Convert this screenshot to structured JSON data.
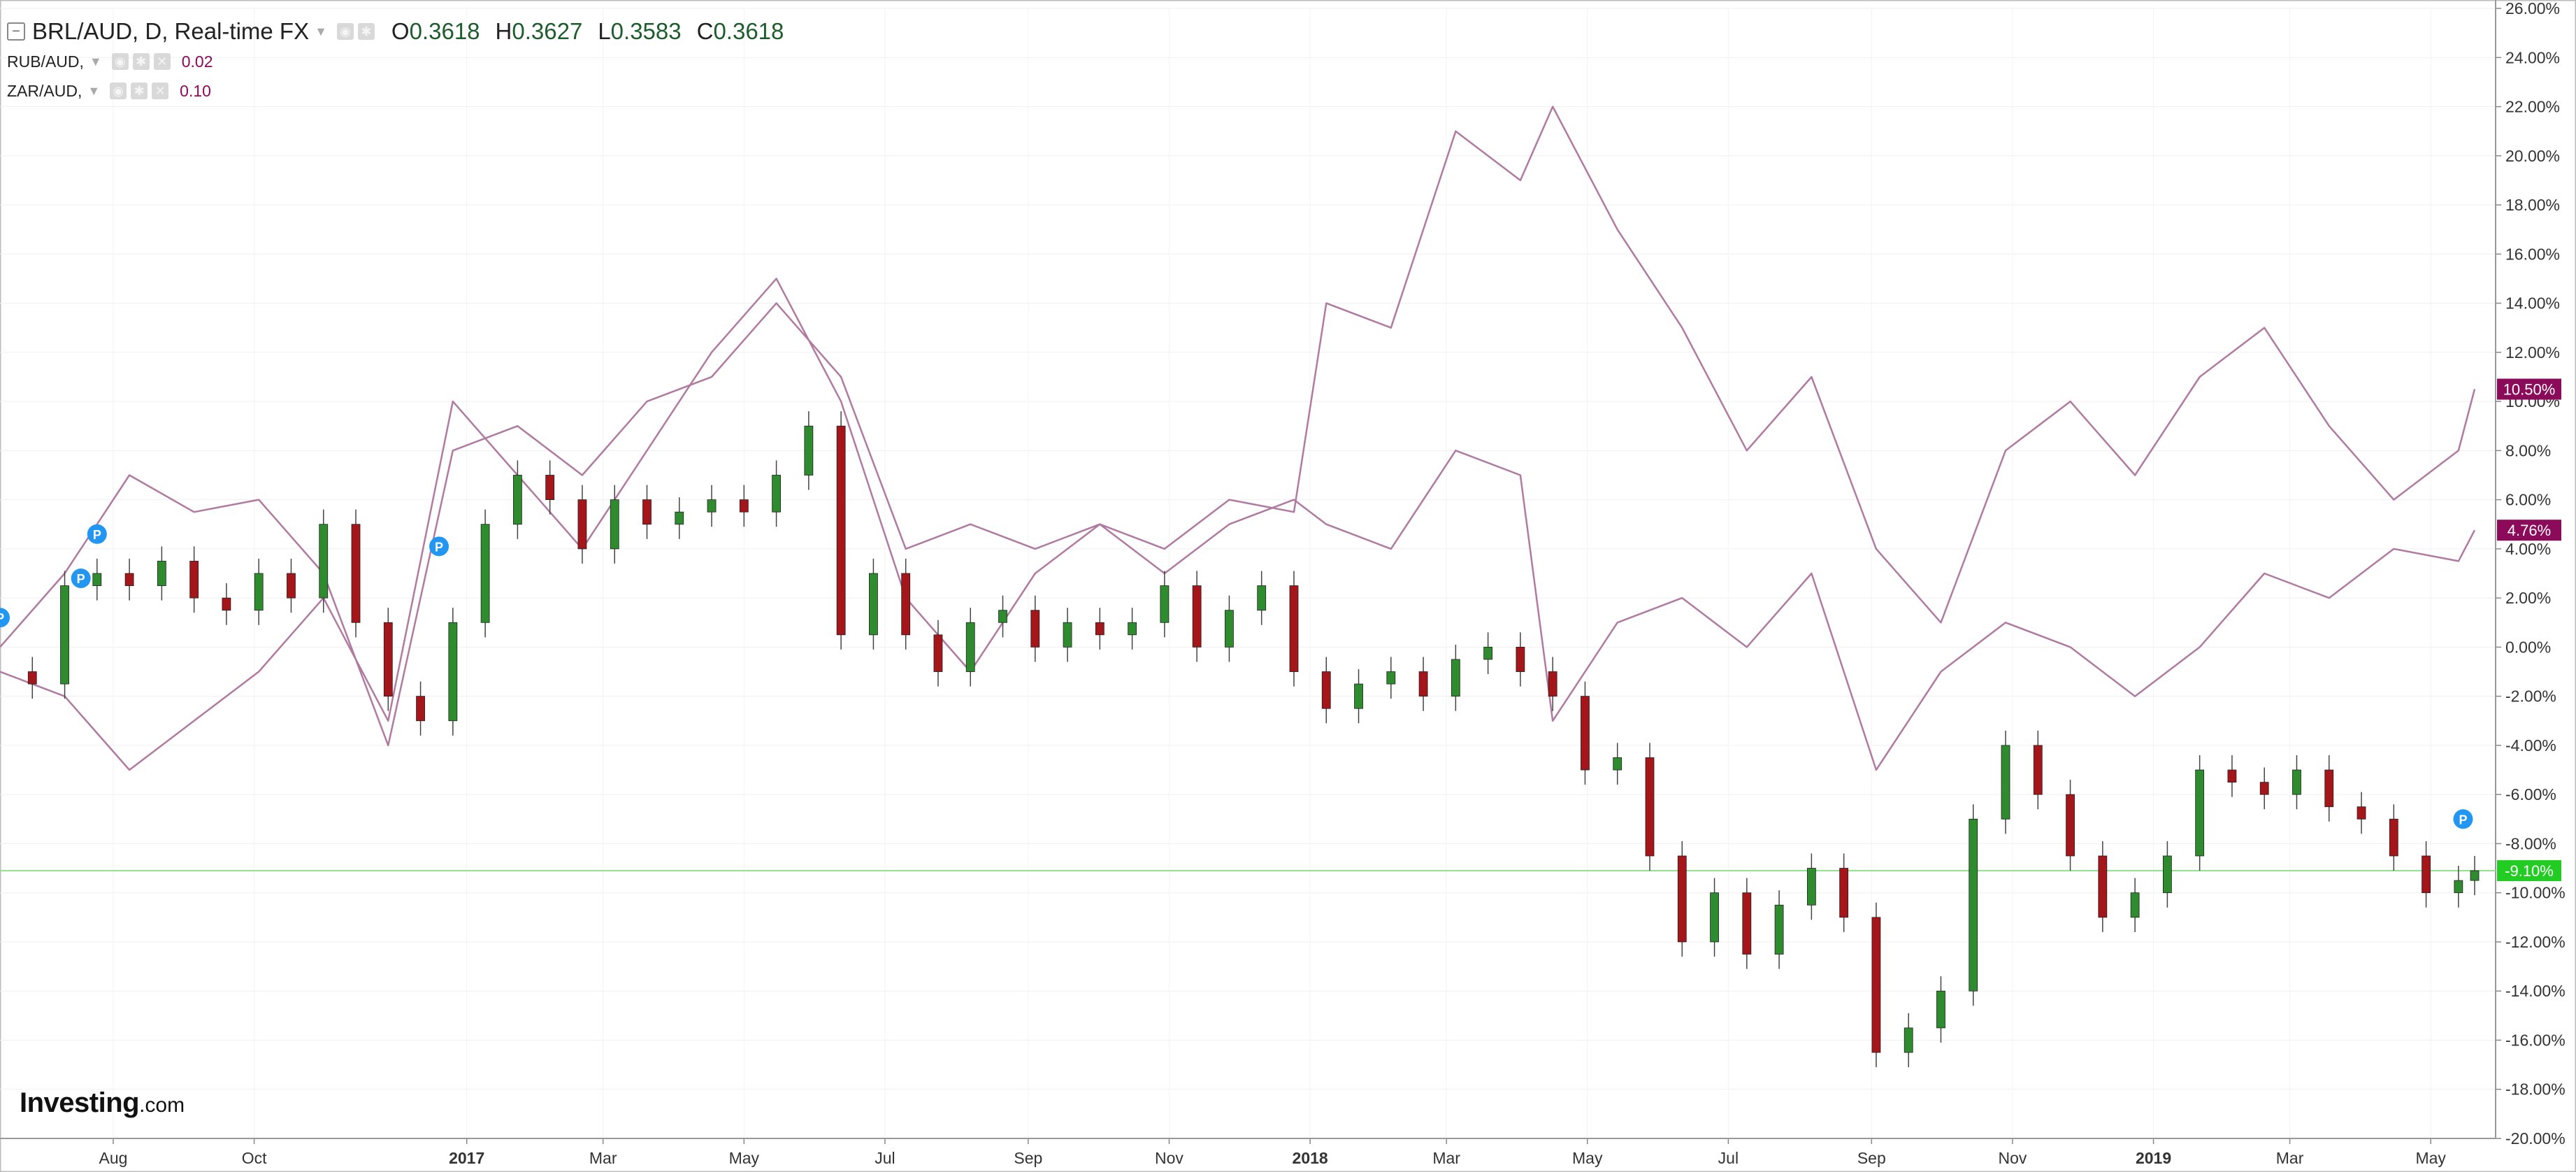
{
  "legend": {
    "main": {
      "symbol_text": "BRL/AUD, D, Real-time FX",
      "open_label": "O",
      "open": "0.3618",
      "high_label": "H",
      "high": "0.3627",
      "low_label": "L",
      "low": "0.3583",
      "close_label": "C",
      "close": "0.3618"
    },
    "compare": [
      {
        "symbol_text": "RUB/AUD,",
        "value": "0.02"
      },
      {
        "symbol_text": "ZAR/AUD,",
        "value": "0.10"
      }
    ]
  },
  "logo": {
    "brand": "Investing",
    "tld": ".com"
  },
  "colors": {
    "up_candle": "#2e8b2e",
    "down_candle": "#a4161a",
    "compare_line": "#b07aa1",
    "current_line": "#8de08d",
    "badge_compare": "#8b0a5a",
    "badge_main": "#22cc22",
    "marker": "#2196f3"
  },
  "chart_data": {
    "type": "line",
    "title": "BRL/AUD, D, Real-time FX",
    "y_unit": "percent change",
    "ylim": [
      -20,
      26
    ],
    "xlim": [
      "2016-06-13",
      "2019-05-20"
    ],
    "grid": true,
    "y_ticks": [
      "26.00%",
      "24.00%",
      "22.00%",
      "20.00%",
      "18.00%",
      "16.00%",
      "14.00%",
      "12.00%",
      "10.00%",
      "8.00%",
      "6.00%",
      "4.00%",
      "2.00%",
      "0.00%",
      "-2.00%",
      "-4.00%",
      "-6.00%",
      "-8.00%",
      "-10.00%",
      "-12.00%",
      "-14.00%",
      "-16.00%",
      "-18.00%",
      "-20.00%"
    ],
    "x_ticks": [
      {
        "label": "Aug",
        "date": "2016-08-01"
      },
      {
        "label": "Oct",
        "date": "2016-10-01"
      },
      {
        "label": "2017",
        "date": "2017-01-01"
      },
      {
        "label": "Mar",
        "date": "2017-03-01"
      },
      {
        "label": "May",
        "date": "2017-05-01"
      },
      {
        "label": "Jul",
        "date": "2017-07-01"
      },
      {
        "label": "Sep",
        "date": "2017-09-01"
      },
      {
        "label": "Nov",
        "date": "2017-11-01"
      },
      {
        "label": "2018",
        "date": "2018-01-01"
      },
      {
        "label": "Mar",
        "date": "2018-03-01"
      },
      {
        "label": "May",
        "date": "2018-05-01"
      },
      {
        "label": "Jul",
        "date": "2018-07-01"
      },
      {
        "label": "Sep",
        "date": "2018-09-01"
      },
      {
        "label": "Nov",
        "date": "2018-11-01"
      },
      {
        "label": "2019",
        "date": "2019-01-01"
      },
      {
        "label": "Mar",
        "date": "2019-03-01"
      },
      {
        "label": "May",
        "date": "2019-05-01"
      }
    ],
    "series": [
      {
        "name": "BRL/AUD",
        "style": "candlestick",
        "last_badge": "-9.10%",
        "x": [
          "2016-06-13",
          "2016-06-27",
          "2016-07-11",
          "2016-07-25",
          "2016-08-08",
          "2016-08-22",
          "2016-09-05",
          "2016-09-19",
          "2016-10-03",
          "2016-10-17",
          "2016-10-31",
          "2016-11-14",
          "2016-11-28",
          "2016-12-12",
          "2016-12-26",
          "2017-01-09",
          "2017-01-23",
          "2017-02-06",
          "2017-02-20",
          "2017-03-06",
          "2017-03-20",
          "2017-04-03",
          "2017-04-17",
          "2017-05-01",
          "2017-05-15",
          "2017-05-29",
          "2017-06-12",
          "2017-06-26",
          "2017-07-10",
          "2017-07-24",
          "2017-08-07",
          "2017-08-21",
          "2017-09-04",
          "2017-09-18",
          "2017-10-02",
          "2017-10-16",
          "2017-10-30",
          "2017-11-13",
          "2017-11-27",
          "2017-12-11",
          "2017-12-25",
          "2018-01-08",
          "2018-01-22",
          "2018-02-05",
          "2018-02-19",
          "2018-03-05",
          "2018-03-19",
          "2018-04-02",
          "2018-04-16",
          "2018-04-30",
          "2018-05-14",
          "2018-05-28",
          "2018-06-11",
          "2018-06-25",
          "2018-07-09",
          "2018-07-23",
          "2018-08-06",
          "2018-08-20",
          "2018-09-03",
          "2018-09-17",
          "2018-10-01",
          "2018-10-15",
          "2018-10-29",
          "2018-11-12",
          "2018-11-26",
          "2018-12-10",
          "2018-12-24",
          "2019-01-07",
          "2019-01-21",
          "2019-02-04",
          "2019-02-18",
          "2019-03-04",
          "2019-03-18",
          "2019-04-01",
          "2019-04-15",
          "2019-04-29",
          "2019-05-13",
          "2019-05-20"
        ],
        "y": [
          -1.0,
          -1.5,
          2.5,
          3.0,
          2.5,
          3.5,
          2.0,
          1.5,
          3.0,
          2.0,
          5.0,
          1.0,
          -2.0,
          -3.0,
          1.0,
          5.0,
          7.0,
          6.0,
          4.0,
          6.0,
          5.0,
          5.5,
          6.0,
          5.5,
          7.0,
          9.0,
          0.5,
          3.0,
          0.5,
          -1.0,
          1.0,
          1.5,
          0.0,
          1.0,
          0.5,
          1.0,
          2.5,
          0.0,
          1.5,
          2.5,
          -1.0,
          -2.5,
          -1.5,
          -1.0,
          -2.0,
          -0.5,
          0.0,
          -1.0,
          -2.0,
          -5.0,
          -4.5,
          -8.5,
          -12.0,
          -10.0,
          -12.5,
          -10.5,
          -9.0,
          -11.0,
          -16.5,
          -15.5,
          -14.0,
          -7.0,
          -4.0,
          -6.0,
          -8.5,
          -11.0,
          -10.0,
          -8.5,
          -5.0,
          -5.5,
          -6.0,
          -5.0,
          -6.5,
          -7.0,
          -8.5,
          -10.0,
          -9.5,
          -9.1
        ]
      },
      {
        "name": "RUB/AUD",
        "style": "line",
        "last_badge": "10.50%",
        "x": [
          "2016-06-13",
          "2016-07-11",
          "2016-08-08",
          "2016-09-05",
          "2016-10-03",
          "2016-10-31",
          "2016-11-28",
          "2016-12-26",
          "2017-01-23",
          "2017-02-20",
          "2017-03-20",
          "2017-04-17",
          "2017-05-15",
          "2017-06-12",
          "2017-07-10",
          "2017-08-07",
          "2017-09-04",
          "2017-10-02",
          "2017-10-30",
          "2017-11-27",
          "2017-12-25",
          "2018-01-08",
          "2018-02-05",
          "2018-03-05",
          "2018-04-02",
          "2018-04-16",
          "2018-05-14",
          "2018-06-11",
          "2018-07-09",
          "2018-08-06",
          "2018-09-03",
          "2018-10-01",
          "2018-10-29",
          "2018-11-26",
          "2018-12-24",
          "2019-01-21",
          "2019-02-18",
          "2019-03-18",
          "2019-04-15",
          "2019-05-13",
          "2019-05-20"
        ],
        "y": [
          0.0,
          3.0,
          7.0,
          5.5,
          6.0,
          3.0,
          -4.0,
          8.0,
          9.0,
          7.0,
          10.0,
          11.0,
          14.0,
          11.0,
          4.0,
          5.0,
          4.0,
          5.0,
          4.0,
          6.0,
          5.5,
          14.0,
          13.0,
          21.0,
          19.0,
          22.0,
          17.0,
          13.0,
          8.0,
          11.0,
          4.0,
          1.0,
          8.0,
          10.0,
          7.0,
          11.0,
          13.0,
          9.0,
          6.0,
          8.0,
          10.5
        ]
      },
      {
        "name": "ZAR/AUD",
        "style": "line",
        "last_badge": "4.76%",
        "x": [
          "2016-06-13",
          "2016-07-11",
          "2016-08-08",
          "2016-09-05",
          "2016-10-03",
          "2016-10-31",
          "2016-11-28",
          "2016-12-26",
          "2017-01-23",
          "2017-02-20",
          "2017-03-20",
          "2017-04-17",
          "2017-05-15",
          "2017-06-12",
          "2017-07-10",
          "2017-08-07",
          "2017-09-04",
          "2017-10-02",
          "2017-10-30",
          "2017-11-27",
          "2017-12-25",
          "2018-01-08",
          "2018-02-05",
          "2018-03-05",
          "2018-04-02",
          "2018-04-16",
          "2018-05-14",
          "2018-06-11",
          "2018-07-09",
          "2018-08-06",
          "2018-09-03",
          "2018-10-01",
          "2018-10-29",
          "2018-11-26",
          "2018-12-24",
          "2019-01-21",
          "2019-02-18",
          "2019-03-18",
          "2019-04-15",
          "2019-05-13",
          "2019-05-20"
        ],
        "y": [
          -1.0,
          -2.0,
          -5.0,
          -3.0,
          -1.0,
          2.0,
          -3.0,
          10.0,
          7.0,
          4.0,
          8.0,
          12.0,
          15.0,
          10.0,
          2.0,
          -1.0,
          3.0,
          5.0,
          3.0,
          5.0,
          6.0,
          5.0,
          4.0,
          8.0,
          7.0,
          -3.0,
          1.0,
          2.0,
          0.0,
          3.0,
          -5.0,
          -1.0,
          1.0,
          0.0,
          -2.0,
          0.0,
          3.0,
          2.0,
          4.0,
          3.5,
          4.76
        ]
      }
    ],
    "annotations": [
      {
        "type": "marker",
        "label": "P",
        "date": "2016-06-13",
        "y": 1.2
      },
      {
        "type": "marker",
        "label": "P",
        "date": "2016-07-18",
        "y": 2.8
      },
      {
        "type": "marker",
        "label": "P",
        "date": "2016-07-25",
        "y": 4.6
      },
      {
        "type": "marker",
        "label": "P",
        "date": "2016-12-20",
        "y": 4.1
      },
      {
        "type": "marker",
        "label": "P",
        "date": "2019-05-15",
        "y": -7.0
      }
    ]
  }
}
